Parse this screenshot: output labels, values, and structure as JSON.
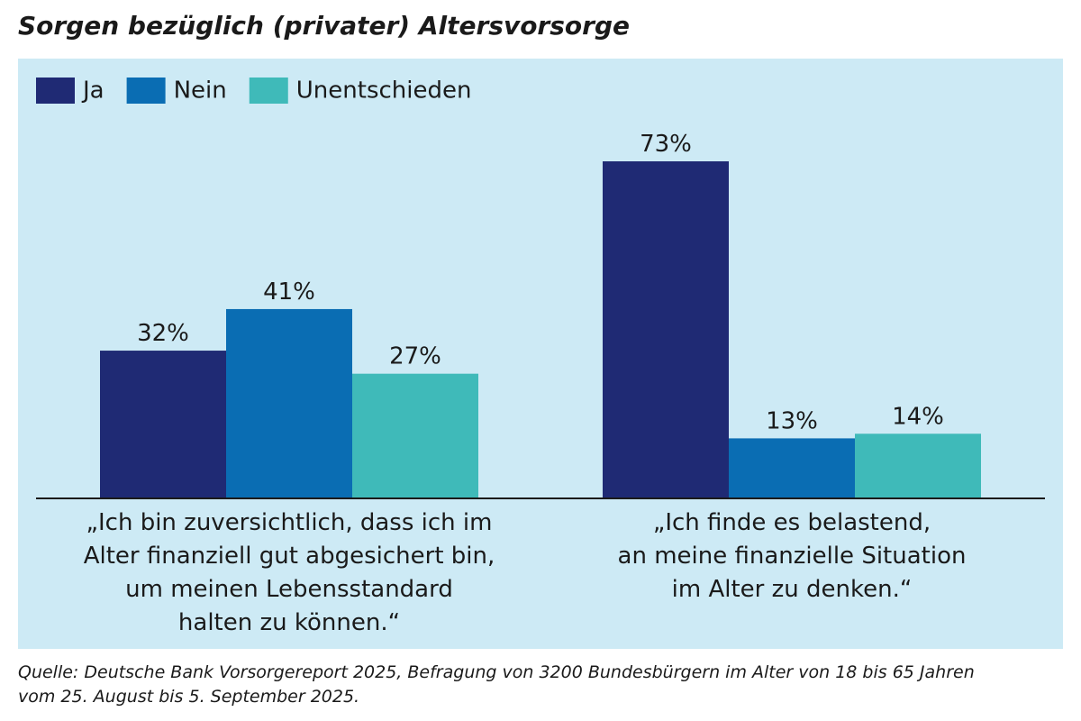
{
  "chart_data": {
    "type": "bar",
    "title": "Sorgen bezüglich (privater) Altersvorsorge",
    "categories": [
      "„Ich bin zuversichtlich, dass ich im\nAlter finanziell gut abgesichert bin,\num meinen Lebensstandard\nhalten zu können.“",
      "„Ich finde es belastend,\nan meine finanzielle Situation\nim Alter zu denken.“"
    ],
    "series": [
      {
        "name": "Ja",
        "color": "#1f2a74",
        "values": [
          32,
          73
        ],
        "value_labels": [
          "32%",
          "73%"
        ]
      },
      {
        "name": "Nein",
        "color": "#0a6db3",
        "values": [
          41,
          13
        ],
        "value_labels": [
          "41%",
          "13%"
        ]
      },
      {
        "name": "Unentschieden",
        "color": "#3fbab9",
        "values": [
          27,
          14
        ],
        "value_labels": [
          "27%",
          "14%"
        ]
      }
    ],
    "source": "Quelle: Deutsche Bank Vorsorgereport 2025, Befragung von 3200 Bundesbürgern im Alter von 18 bis 65 Jahren\nvom 25. August bis 5. September 2025."
  }
}
